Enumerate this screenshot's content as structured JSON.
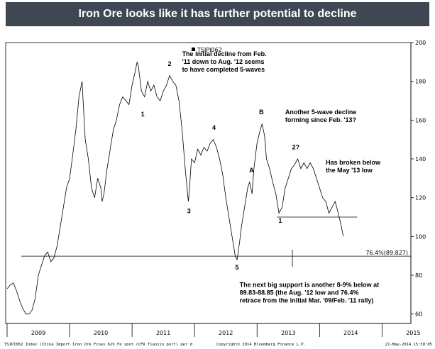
{
  "banner": {
    "title": "Iron Ore looks like it has further potential to decline"
  },
  "chart_data": {
    "type": "line",
    "title": "Iron Ore looks like it has further potential to decline",
    "legend": "TSIPI062",
    "ylim": [
      50,
      200
    ],
    "y_ticks": [
      60,
      80,
      100,
      120,
      140,
      160,
      180,
      200
    ],
    "x_labels": [
      "2009",
      "2010",
      "2011",
      "2012",
      "2013",
      "2014",
      "2015"
    ],
    "xlim": [
      2009.0,
      2015.45
    ],
    "series": [
      {
        "name": "TSIPI062",
        "points": [
          [
            2009.0,
            73
          ],
          [
            2009.05,
            75
          ],
          [
            2009.1,
            76
          ],
          [
            2009.15,
            72
          ],
          [
            2009.2,
            67
          ],
          [
            2009.25,
            63
          ],
          [
            2009.3,
            60
          ],
          [
            2009.35,
            60
          ],
          [
            2009.4,
            62
          ],
          [
            2009.45,
            68
          ],
          [
            2009.5,
            80
          ],
          [
            2009.55,
            85
          ],
          [
            2009.6,
            90
          ],
          [
            2009.65,
            92
          ],
          [
            2009.7,
            87
          ],
          [
            2009.75,
            89
          ],
          [
            2009.8,
            95
          ],
          [
            2009.85,
            105
          ],
          [
            2009.9,
            115
          ],
          [
            2009.95,
            125
          ],
          [
            2010.0,
            130
          ],
          [
            2010.05,
            142
          ],
          [
            2010.1,
            155
          ],
          [
            2010.15,
            172
          ],
          [
            2010.2,
            180
          ],
          [
            2010.22,
            168
          ],
          [
            2010.25,
            150
          ],
          [
            2010.3,
            140
          ],
          [
            2010.35,
            125
          ],
          [
            2010.4,
            120
          ],
          [
            2010.45,
            130
          ],
          [
            2010.5,
            125
          ],
          [
            2010.52,
            118
          ],
          [
            2010.55,
            122
          ],
          [
            2010.6,
            135
          ],
          [
            2010.65,
            145
          ],
          [
            2010.7,
            155
          ],
          [
            2010.75,
            160
          ],
          [
            2010.8,
            168
          ],
          [
            2010.85,
            172
          ],
          [
            2010.9,
            170
          ],
          [
            2010.95,
            168
          ],
          [
            2011.0,
            178
          ],
          [
            2011.05,
            185
          ],
          [
            2011.08,
            190
          ],
          [
            2011.1,
            188
          ],
          [
            2011.15,
            175
          ],
          [
            2011.2,
            172
          ],
          [
            2011.25,
            180
          ],
          [
            2011.3,
            175
          ],
          [
            2011.35,
            178
          ],
          [
            2011.4,
            172
          ],
          [
            2011.45,
            170
          ],
          [
            2011.5,
            175
          ],
          [
            2011.55,
            178
          ],
          [
            2011.6,
            183
          ],
          [
            2011.65,
            180
          ],
          [
            2011.7,
            178
          ],
          [
            2011.75,
            170
          ],
          [
            2011.8,
            155
          ],
          [
            2011.85,
            135
          ],
          [
            2011.9,
            118
          ],
          [
            2011.92,
            125
          ],
          [
            2011.95,
            140
          ],
          [
            2012.0,
            138
          ],
          [
            2012.05,
            145
          ],
          [
            2012.1,
            142
          ],
          [
            2012.15,
            146
          ],
          [
            2012.2,
            144
          ],
          [
            2012.25,
            148
          ],
          [
            2012.3,
            150
          ],
          [
            2012.35,
            146
          ],
          [
            2012.4,
            140
          ],
          [
            2012.45,
            132
          ],
          [
            2012.5,
            120
          ],
          [
            2012.55,
            110
          ],
          [
            2012.6,
            100
          ],
          [
            2012.65,
            90
          ],
          [
            2012.68,
            88
          ],
          [
            2012.72,
            97
          ],
          [
            2012.75,
            105
          ],
          [
            2012.8,
            115
          ],
          [
            2012.85,
            125
          ],
          [
            2012.88,
            128
          ],
          [
            2012.92,
            122
          ],
          [
            2012.95,
            135
          ],
          [
            2013.0,
            148
          ],
          [
            2013.05,
            155
          ],
          [
            2013.08,
            158
          ],
          [
            2013.12,
            152
          ],
          [
            2013.15,
            140
          ],
          [
            2013.2,
            135
          ],
          [
            2013.25,
            128
          ],
          [
            2013.3,
            122
          ],
          [
            2013.35,
            112
          ],
          [
            2013.4,
            115
          ],
          [
            2013.45,
            125
          ],
          [
            2013.5,
            130
          ],
          [
            2013.55,
            135
          ],
          [
            2013.6,
            137
          ],
          [
            2013.65,
            140
          ],
          [
            2013.7,
            135
          ],
          [
            2013.75,
            138
          ],
          [
            2013.8,
            135
          ],
          [
            2013.85,
            138
          ],
          [
            2013.9,
            135
          ],
          [
            2013.95,
            130
          ],
          [
            2014.0,
            125
          ],
          [
            2014.05,
            120
          ],
          [
            2014.1,
            118
          ],
          [
            2014.15,
            112
          ],
          [
            2014.2,
            115
          ],
          [
            2014.25,
            118
          ],
          [
            2014.3,
            112
          ],
          [
            2014.35,
            105
          ],
          [
            2014.38,
            100
          ]
        ]
      }
    ],
    "support_level": 89.827,
    "support_label": "76.4%(89.827)",
    "breakdown_level": 110,
    "wave_labels": [
      {
        "label": "1",
        "x": 2011.17,
        "y": 162
      },
      {
        "label": "2",
        "x": 2011.6,
        "y": 188
      },
      {
        "label": "3",
        "x": 2011.91,
        "y": 112
      },
      {
        "label": "4",
        "x": 2012.31,
        "y": 155
      },
      {
        "label": "5",
        "x": 2012.68,
        "y": 83
      },
      {
        "label": "A",
        "x": 2012.91,
        "y": 133
      },
      {
        "label": "B",
        "x": 2013.07,
        "y": 163
      },
      {
        "label": "1",
        "x": 2013.37,
        "y": 107
      },
      {
        "label": "2?",
        "x": 2013.62,
        "y": 145
      }
    ],
    "annotations": [
      {
        "lines": [
          "The initial decline from Feb.",
          "'11 down to Aug. '12 seems",
          "to have completed 5-waves"
        ],
        "x": 2011.8,
        "y": 193
      },
      {
        "lines": [
          "Another 5-wave decline",
          "forming since Feb. '13?"
        ],
        "x": 2013.45,
        "y": 163
      },
      {
        "lines": [
          "Has broken below",
          "the May '13 low"
        ],
        "x": 2014.1,
        "y": 137
      },
      {
        "lines": [
          "The next big support is another 8-9% below at",
          "89.83-88.85 (the Aug. '12 low and 76.4%",
          "retrace from the initial Mar. '09/Feb. '11 rally)"
        ],
        "x": 2012.72,
        "y": 74
      }
    ],
    "footer": {
      "left": "TSIPI062 Index (China Import Iron Ore Fines 62% Fe spot (CFR Tianjin port) per d",
      "center": "Copyright© 2014 Bloomberg Finance L.P.",
      "right": "21-May-2014 15:50:05"
    }
  }
}
